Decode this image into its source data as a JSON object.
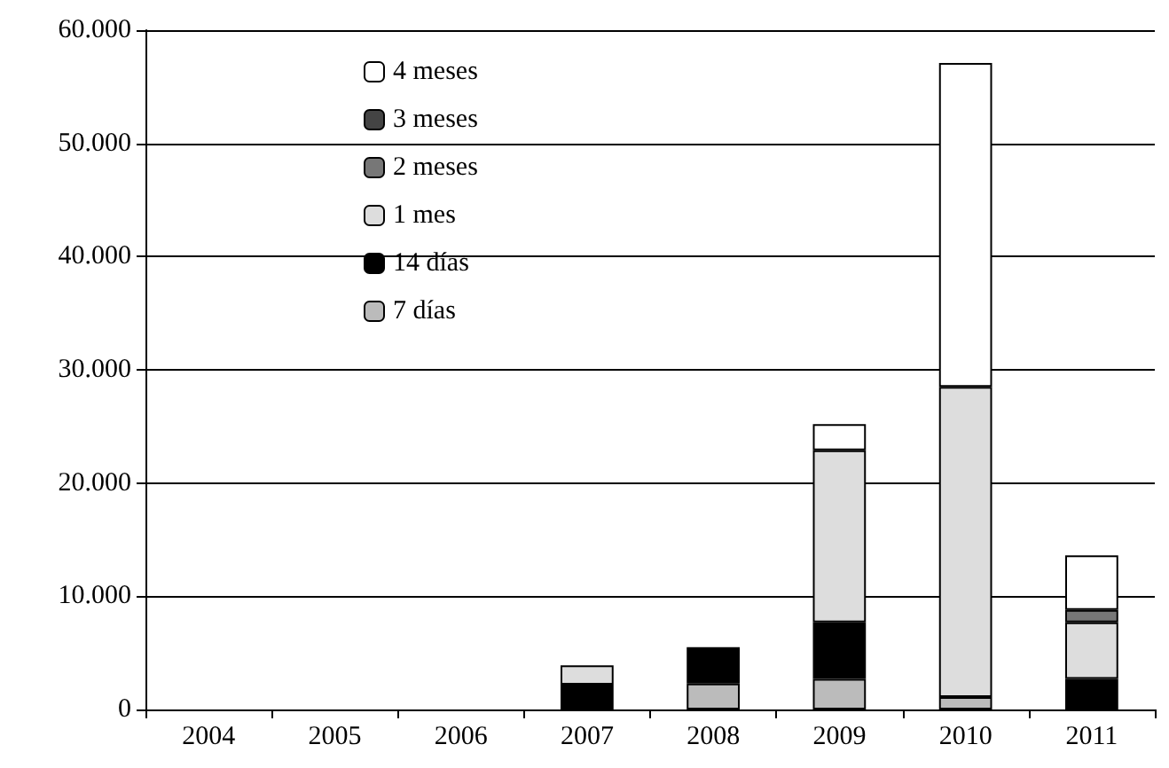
{
  "chart_data": {
    "type": "bar",
    "stacked": true,
    "categories": [
      "2004",
      "2005",
      "2006",
      "2007",
      "2008",
      "2009",
      "2010",
      "2011"
    ],
    "series": [
      {
        "name": "7 días",
        "color": "#bbbbbb",
        "values": [
          null,
          null,
          null,
          null,
          2300,
          2700,
          1100,
          null
        ]
      },
      {
        "name": "14 días",
        "color": "#000000",
        "values": [
          null,
          null,
          null,
          2200,
          3200,
          5000,
          null,
          2700
        ]
      },
      {
        "name": "1 mes",
        "color": "#dddddd",
        "values": [
          null,
          null,
          null,
          1700,
          null,
          15200,
          27400,
          5000
        ]
      },
      {
        "name": "2 meses",
        "color": "#777777",
        "values": [
          null,
          null,
          null,
          null,
          null,
          null,
          null,
          1100
        ]
      },
      {
        "name": "3 meses",
        "color": "#444444",
        "values": [
          null,
          null,
          null,
          null,
          null,
          null,
          null,
          null
        ]
      },
      {
        "name": "4 meses",
        "color": "#ffffff",
        "values": [
          null,
          null,
          null,
          null,
          null,
          2300,
          28600,
          4800
        ]
      }
    ],
    "ylim": [
      0,
      60000
    ],
    "yticks": [
      {
        "value": 0,
        "label": "0"
      },
      {
        "value": 10000,
        "label": "10.000"
      },
      {
        "value": 20000,
        "label": "20.000"
      },
      {
        "value": 30000,
        "label": "30.000"
      },
      {
        "value": 40000,
        "label": "40.000"
      },
      {
        "value": 50000,
        "label": "50.000"
      },
      {
        "value": 60000,
        "label": "60.000"
      }
    ],
    "grid": "y",
    "legend": "top left"
  }
}
